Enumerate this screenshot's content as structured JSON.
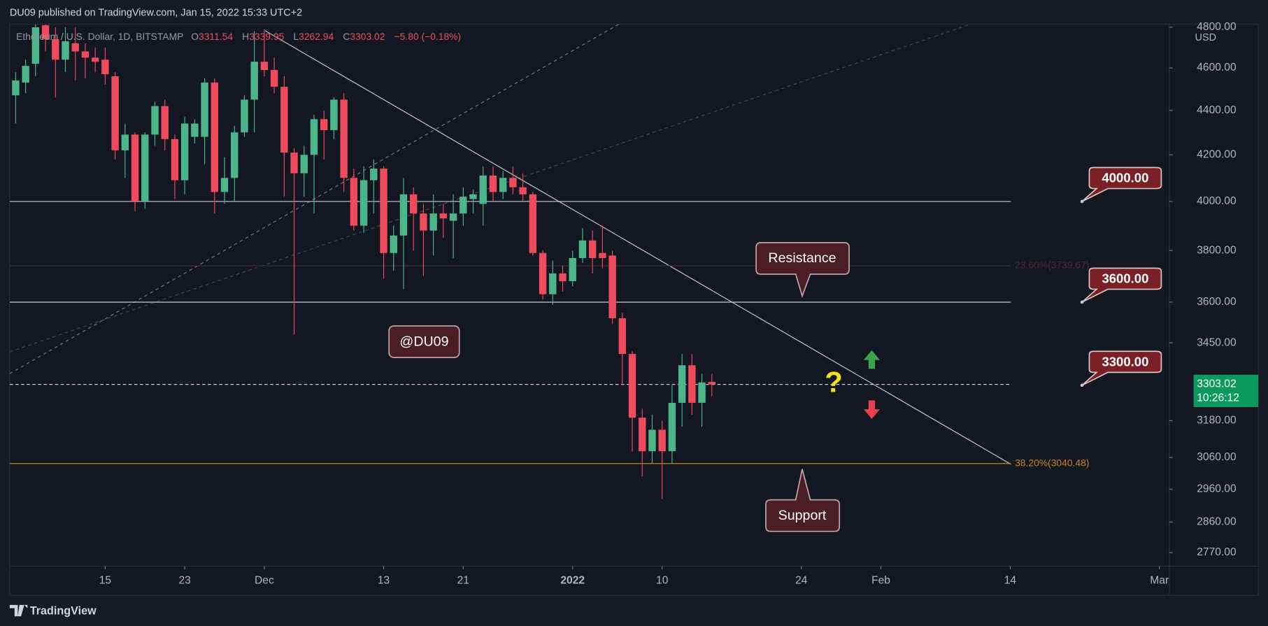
{
  "header": {
    "publisher": "DU09 published on TradingView.com, Jan 15, 2022 15:33 UTC+2"
  },
  "footer": {
    "brand": "TradingView"
  },
  "chart_data": {
    "type": "candlestick",
    "symbol": "Ethereum / U.S. Dollar, 1D, BITSTAMP",
    "ohlc_header": [
      {
        "label": "O",
        "value": "3311.54"
      },
      {
        "label": "H",
        "value": "3339.95"
      },
      {
        "label": "L",
        "value": "3262.94"
      },
      {
        "label": "C",
        "value": "3303.02"
      }
    ],
    "change": "−5.80 (−0.18%)",
    "currency": "USD",
    "up_color": "#4cb68a",
    "down_color": "#ef4b5c",
    "log_scale": true,
    "grid": false,
    "x": [
      0,
      1,
      2,
      3,
      4,
      5,
      6,
      7,
      8,
      9,
      10,
      11,
      12,
      13,
      14,
      15,
      16,
      17,
      18,
      19,
      20,
      21,
      22,
      23,
      24,
      25,
      26,
      27,
      28,
      29,
      30,
      31,
      32,
      33,
      34,
      35,
      36,
      37,
      38,
      39,
      40,
      41,
      42,
      43,
      44,
      45,
      46,
      47,
      48,
      49,
      50,
      51,
      52,
      53,
      54,
      55,
      56,
      57,
      58,
      59,
      60,
      61,
      62,
      63,
      64,
      65,
      66,
      67,
      68,
      69,
      70
    ],
    "open": [
      4470,
      4530,
      4620,
      4810,
      4740,
      4640,
      4720,
      4680,
      4650,
      4640,
      4560,
      4220,
      4290,
      4000,
      4290,
      4420,
      4270,
      4090,
      4280,
      4280,
      4530,
      4040,
      4100,
      4300,
      4450,
      4630,
      4590,
      4510,
      4210,
      4120,
      4200,
      4360,
      4310,
      4450,
      4100,
      3900,
      4090,
      4140,
      3790,
      3860,
      4030,
      3950,
      3880,
      3950,
      3920,
      3950,
      4010,
      3990,
      4110,
      4040,
      4100,
      4060,
      4030,
      3790,
      3630,
      3710,
      3680,
      3770,
      3840,
      3790,
      3780,
      3540,
      3410,
      3190,
      3080,
      3150,
      3080,
      3240,
      3370,
      3240,
      3311.54
    ],
    "high": [
      4580,
      4640,
      4815,
      4815,
      4800,
      4800,
      4800,
      4720,
      4700,
      4700,
      4580,
      4340,
      4300,
      4300,
      4440,
      4450,
      4290,
      4370,
      4360,
      4550,
      4550,
      4190,
      4330,
      4470,
      4780,
      4790,
      4650,
      4560,
      4230,
      4240,
      4380,
      4400,
      4460,
      4480,
      4140,
      4150,
      4180,
      4150,
      3900,
      4100,
      4060,
      3990,
      4030,
      3990,
      4030,
      4060,
      4050,
      4150,
      4150,
      4130,
      4150,
      4120,
      4040,
      3800,
      3760,
      3740,
      3800,
      3890,
      3880,
      3900,
      3800,
      3560,
      3420,
      3220,
      3200,
      3180,
      3300,
      3410,
      3410,
      3340,
      3339.95
    ],
    "low": [
      4340,
      4480,
      4560,
      4680,
      4460,
      4580,
      4540,
      4550,
      4580,
      4520,
      4180,
      4100,
      3960,
      3970,
      4240,
      4220,
      4010,
      4030,
      4250,
      4160,
      3950,
      3990,
      4000,
      4280,
      4300,
      4560,
      4480,
      4020,
      3480,
      4020,
      3950,
      4180,
      4270,
      4040,
      3880,
      3870,
      3950,
      3690,
      3720,
      3650,
      3800,
      3700,
      3780,
      3850,
      3770,
      3900,
      3950,
      3900,
      4000,
      4010,
      4030,
      4000,
      3780,
      3610,
      3590,
      3640,
      3660,
      3750,
      3710,
      3730,
      3520,
      3300,
      3080,
      3000,
      3040,
      2930,
      3040,
      3160,
      3200,
      3160,
      3262.94
    ],
    "close": [
      4540,
      4610,
      4800,
      4740,
      4640,
      4730,
      4680,
      4650,
      4630,
      4570,
      4220,
      4290,
      4000,
      4290,
      4420,
      4270,
      4090,
      4340,
      4340,
      4530,
      4040,
      4100,
      4300,
      4450,
      4630,
      4590,
      4510,
      4210,
      4120,
      4200,
      4360,
      4310,
      4450,
      4100,
      3900,
      4090,
      4140,
      3790,
      3860,
      4030,
      3950,
      3880,
      3950,
      3930,
      3950,
      4020,
      4030,
      4110,
      4040,
      4100,
      4060,
      4030,
      3790,
      3630,
      3710,
      3680,
      3770,
      3840,
      3770,
      3770,
      3540,
      3410,
      3190,
      3080,
      3150,
      3080,
      3240,
      3370,
      3240,
      3310,
      3303.02
    ],
    "xlim": [
      -0.6,
      116
    ],
    "xticks": [
      {
        "value": 9,
        "label": "15"
      },
      {
        "value": 17,
        "label": "23"
      },
      {
        "value": 25,
        "label": "Dec"
      },
      {
        "value": 37,
        "label": "13"
      },
      {
        "value": 45,
        "label": "21"
      },
      {
        "value": 56,
        "label": "2022"
      },
      {
        "value": 65,
        "label": "10"
      },
      {
        "value": 79,
        "label": "24"
      },
      {
        "value": 87,
        "label": "Feb"
      },
      {
        "value": 100,
        "label": "14"
      },
      {
        "value": 115,
        "label": "Mar"
      }
    ],
    "ylim": [
      2731,
      4815
    ],
    "yticks": [
      {
        "value": 4800,
        "label": "4800.00"
      },
      {
        "value": 4600,
        "label": "4600.00"
      },
      {
        "value": 4400,
        "label": "4400.00"
      },
      {
        "value": 4200,
        "label": "4200.00"
      },
      {
        "value": 4000,
        "label": "4000.00"
      },
      {
        "value": 3800,
        "label": "3800.00"
      },
      {
        "value": 3600,
        "label": "3600.00"
      },
      {
        "value": 3450,
        "label": "3450.00"
      },
      {
        "value": 3180,
        "label": "3180.00"
      },
      {
        "value": 3060,
        "label": "3060.00"
      },
      {
        "value": 2960,
        "label": "2960.00"
      },
      {
        "value": 2860,
        "label": "2860.00"
      },
      {
        "value": 2770,
        "label": "2770.00"
      }
    ],
    "levels": [
      4000,
      3600
    ],
    "fib_levels": [
      {
        "value": 3739.67,
        "label": "23.60%(3739.67)",
        "color": "#4a2c2e"
      },
      {
        "value": 3040.48,
        "label": "38.20%(3040.48)",
        "color": "#c98222"
      }
    ],
    "price_callouts": [
      {
        "value": 4000,
        "label": "4000.00"
      },
      {
        "value": 3600,
        "label": "3600.00"
      },
      {
        "value": 3300,
        "label": "3300.00"
      }
    ],
    "last_price_label": "3303.02",
    "countdown": "10:26:12",
    "annotations": {
      "resistance": "Resistance",
      "support": "Support",
      "watermark": "@DU09",
      "question": "?"
    }
  }
}
